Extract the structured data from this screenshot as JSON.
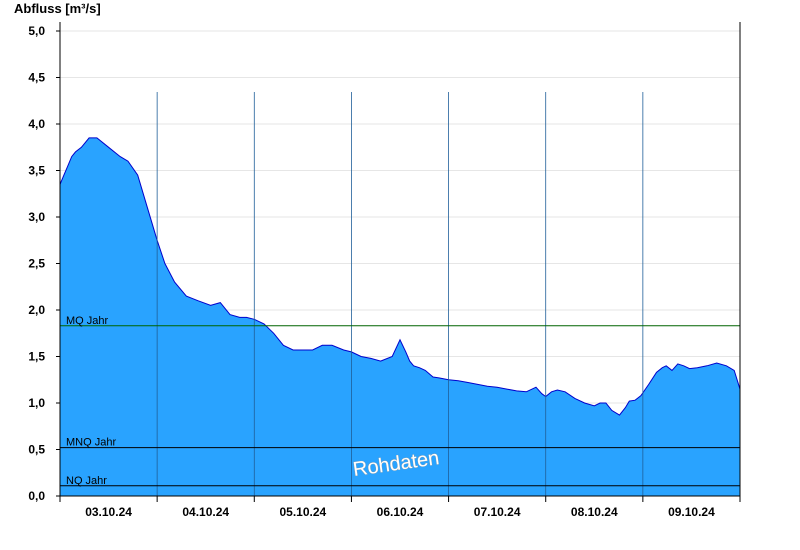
{
  "chart_data": {
    "type": "area",
    "title": "",
    "ylabel": "Abfluss [m³/s]",
    "xlabel": "",
    "ylim": [
      0,
      5.2
    ],
    "yticks": [
      "0,0",
      "0,5",
      "1,0",
      "1,5",
      "2,0",
      "2,5",
      "3,0",
      "3,5",
      "4,0",
      "4,5",
      "5,0"
    ],
    "ytick_values": [
      0,
      0.5,
      1.0,
      1.5,
      2.0,
      2.5,
      3.0,
      3.5,
      4.0,
      4.5,
      5.0
    ],
    "xlim_days": [
      0,
      7
    ],
    "day_labels": [
      "03.10.24",
      "04.10.24",
      "05.10.24",
      "06.10.24",
      "07.10.24",
      "08.10.24",
      "09.10.24"
    ],
    "grid": true,
    "fill_color": "#29a3ff",
    "line_color": "#0000cc",
    "series": [
      {
        "t": [
          0.0,
          0.04,
          0.08,
          0.12,
          0.16,
          0.22,
          0.3,
          0.38,
          0.5,
          0.62,
          0.7,
          0.8,
          0.9,
          1.0,
          1.08,
          1.18,
          1.3,
          1.42,
          1.55,
          1.65,
          1.75,
          1.85,
          1.92,
          2.0,
          2.1,
          2.2,
          2.3,
          2.4,
          2.52,
          2.6,
          2.7,
          2.8,
          2.92,
          3.0,
          3.1,
          3.2,
          3.3,
          3.42,
          3.5,
          3.56,
          3.6,
          3.64,
          3.7,
          3.76,
          3.84,
          3.9,
          4.0,
          4.1,
          4.2,
          4.3,
          4.4,
          4.5,
          4.6,
          4.7,
          4.8,
          4.86,
          4.9,
          4.96,
          5.0,
          5.06,
          5.12,
          5.2,
          5.3,
          5.4,
          5.5,
          5.56,
          5.62,
          5.68,
          5.76,
          5.82,
          5.86,
          5.92,
          5.98,
          6.06,
          6.14,
          6.2,
          6.24,
          6.3,
          6.36,
          6.42,
          6.48,
          6.56,
          6.66,
          6.76,
          6.86,
          6.94,
          7.0
        ],
        "values": [
          3.35,
          3.45,
          3.55,
          3.65,
          3.7,
          3.75,
          3.85,
          3.85,
          3.75,
          3.65,
          3.6,
          3.45,
          3.1,
          2.75,
          2.5,
          2.3,
          2.15,
          2.1,
          2.05,
          2.08,
          1.95,
          1.92,
          1.92,
          1.9,
          1.85,
          1.75,
          1.62,
          1.57,
          1.57,
          1.57,
          1.62,
          1.62,
          1.57,
          1.55,
          1.5,
          1.48,
          1.45,
          1.5,
          1.68,
          1.55,
          1.45,
          1.4,
          1.38,
          1.35,
          1.28,
          1.27,
          1.25,
          1.24,
          1.22,
          1.2,
          1.18,
          1.17,
          1.15,
          1.13,
          1.12,
          1.15,
          1.17,
          1.1,
          1.07,
          1.12,
          1.14,
          1.12,
          1.05,
          1.0,
          0.97,
          1.0,
          1.0,
          0.92,
          0.87,
          0.95,
          1.02,
          1.03,
          1.08,
          1.2,
          1.33,
          1.38,
          1.4,
          1.35,
          1.42,
          1.4,
          1.37,
          1.38,
          1.4,
          1.43,
          1.4,
          1.35,
          1.15
        ]
      }
    ],
    "reference_lines": [
      {
        "label": "MQ Jahr",
        "value": 1.83,
        "color": "#006400"
      },
      {
        "label": "MNQ Jahr",
        "value": 0.52,
        "color": "#000000"
      },
      {
        "label": "NQ Jahr",
        "value": 0.11,
        "color": "#000000"
      }
    ],
    "watermark": "Rohdaten"
  }
}
